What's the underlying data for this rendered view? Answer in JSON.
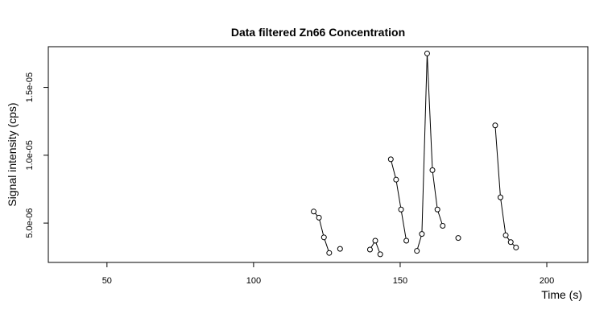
{
  "chart_data": {
    "type": "line",
    "title": "Data filtered Zn66 Concentration",
    "xlabel": "Time (s)",
    "ylabel": "Signal intensity (cps)",
    "xlim": [
      30,
      214
    ],
    "ylim": [
      2.1e-06,
      1.8e-05
    ],
    "xticks": [
      50,
      100,
      150,
      200
    ],
    "xtick_labels": [
      "50",
      "100",
      "150",
      "200"
    ],
    "yticks": [
      5e-06,
      1e-05,
      1.5e-05
    ],
    "ytick_labels": [
      "5.0e-06",
      "1.0e-05",
      "1.5e-05"
    ],
    "grid": false,
    "marker": "open-circle",
    "segments": [
      [
        [
          120.5,
          5.85e-06
        ],
        [
          122.3,
          5.4e-06
        ],
        [
          124.0,
          3.95e-06
        ],
        [
          125.8,
          2.8e-06
        ]
      ],
      [
        [
          129.5,
          3.1e-06
        ]
      ],
      [
        [
          139.7,
          3.05e-06
        ],
        [
          141.5,
          3.7e-06
        ],
        [
          143.2,
          2.7e-06
        ]
      ],
      [
        [
          146.8,
          9.7e-06
        ],
        [
          148.6,
          8.2e-06
        ],
        [
          150.3,
          6e-06
        ],
        [
          152.1,
          3.7e-06
        ]
      ],
      [
        [
          155.7,
          2.95e-06
        ],
        [
          157.4,
          4.2e-06
        ],
        [
          159.2,
          1.75e-05
        ],
        [
          161.0,
          8.9e-06
        ],
        [
          162.7,
          6e-06
        ],
        [
          164.5,
          4.8e-06
        ]
      ],
      [
        [
          169.8,
          3.9e-06
        ]
      ],
      [
        [
          182.4,
          1.22e-05
        ],
        [
          184.2,
          6.9e-06
        ],
        [
          186.0,
          4.1e-06
        ],
        [
          187.7,
          3.6e-06
        ],
        [
          189.5,
          3.2e-06
        ]
      ]
    ]
  }
}
